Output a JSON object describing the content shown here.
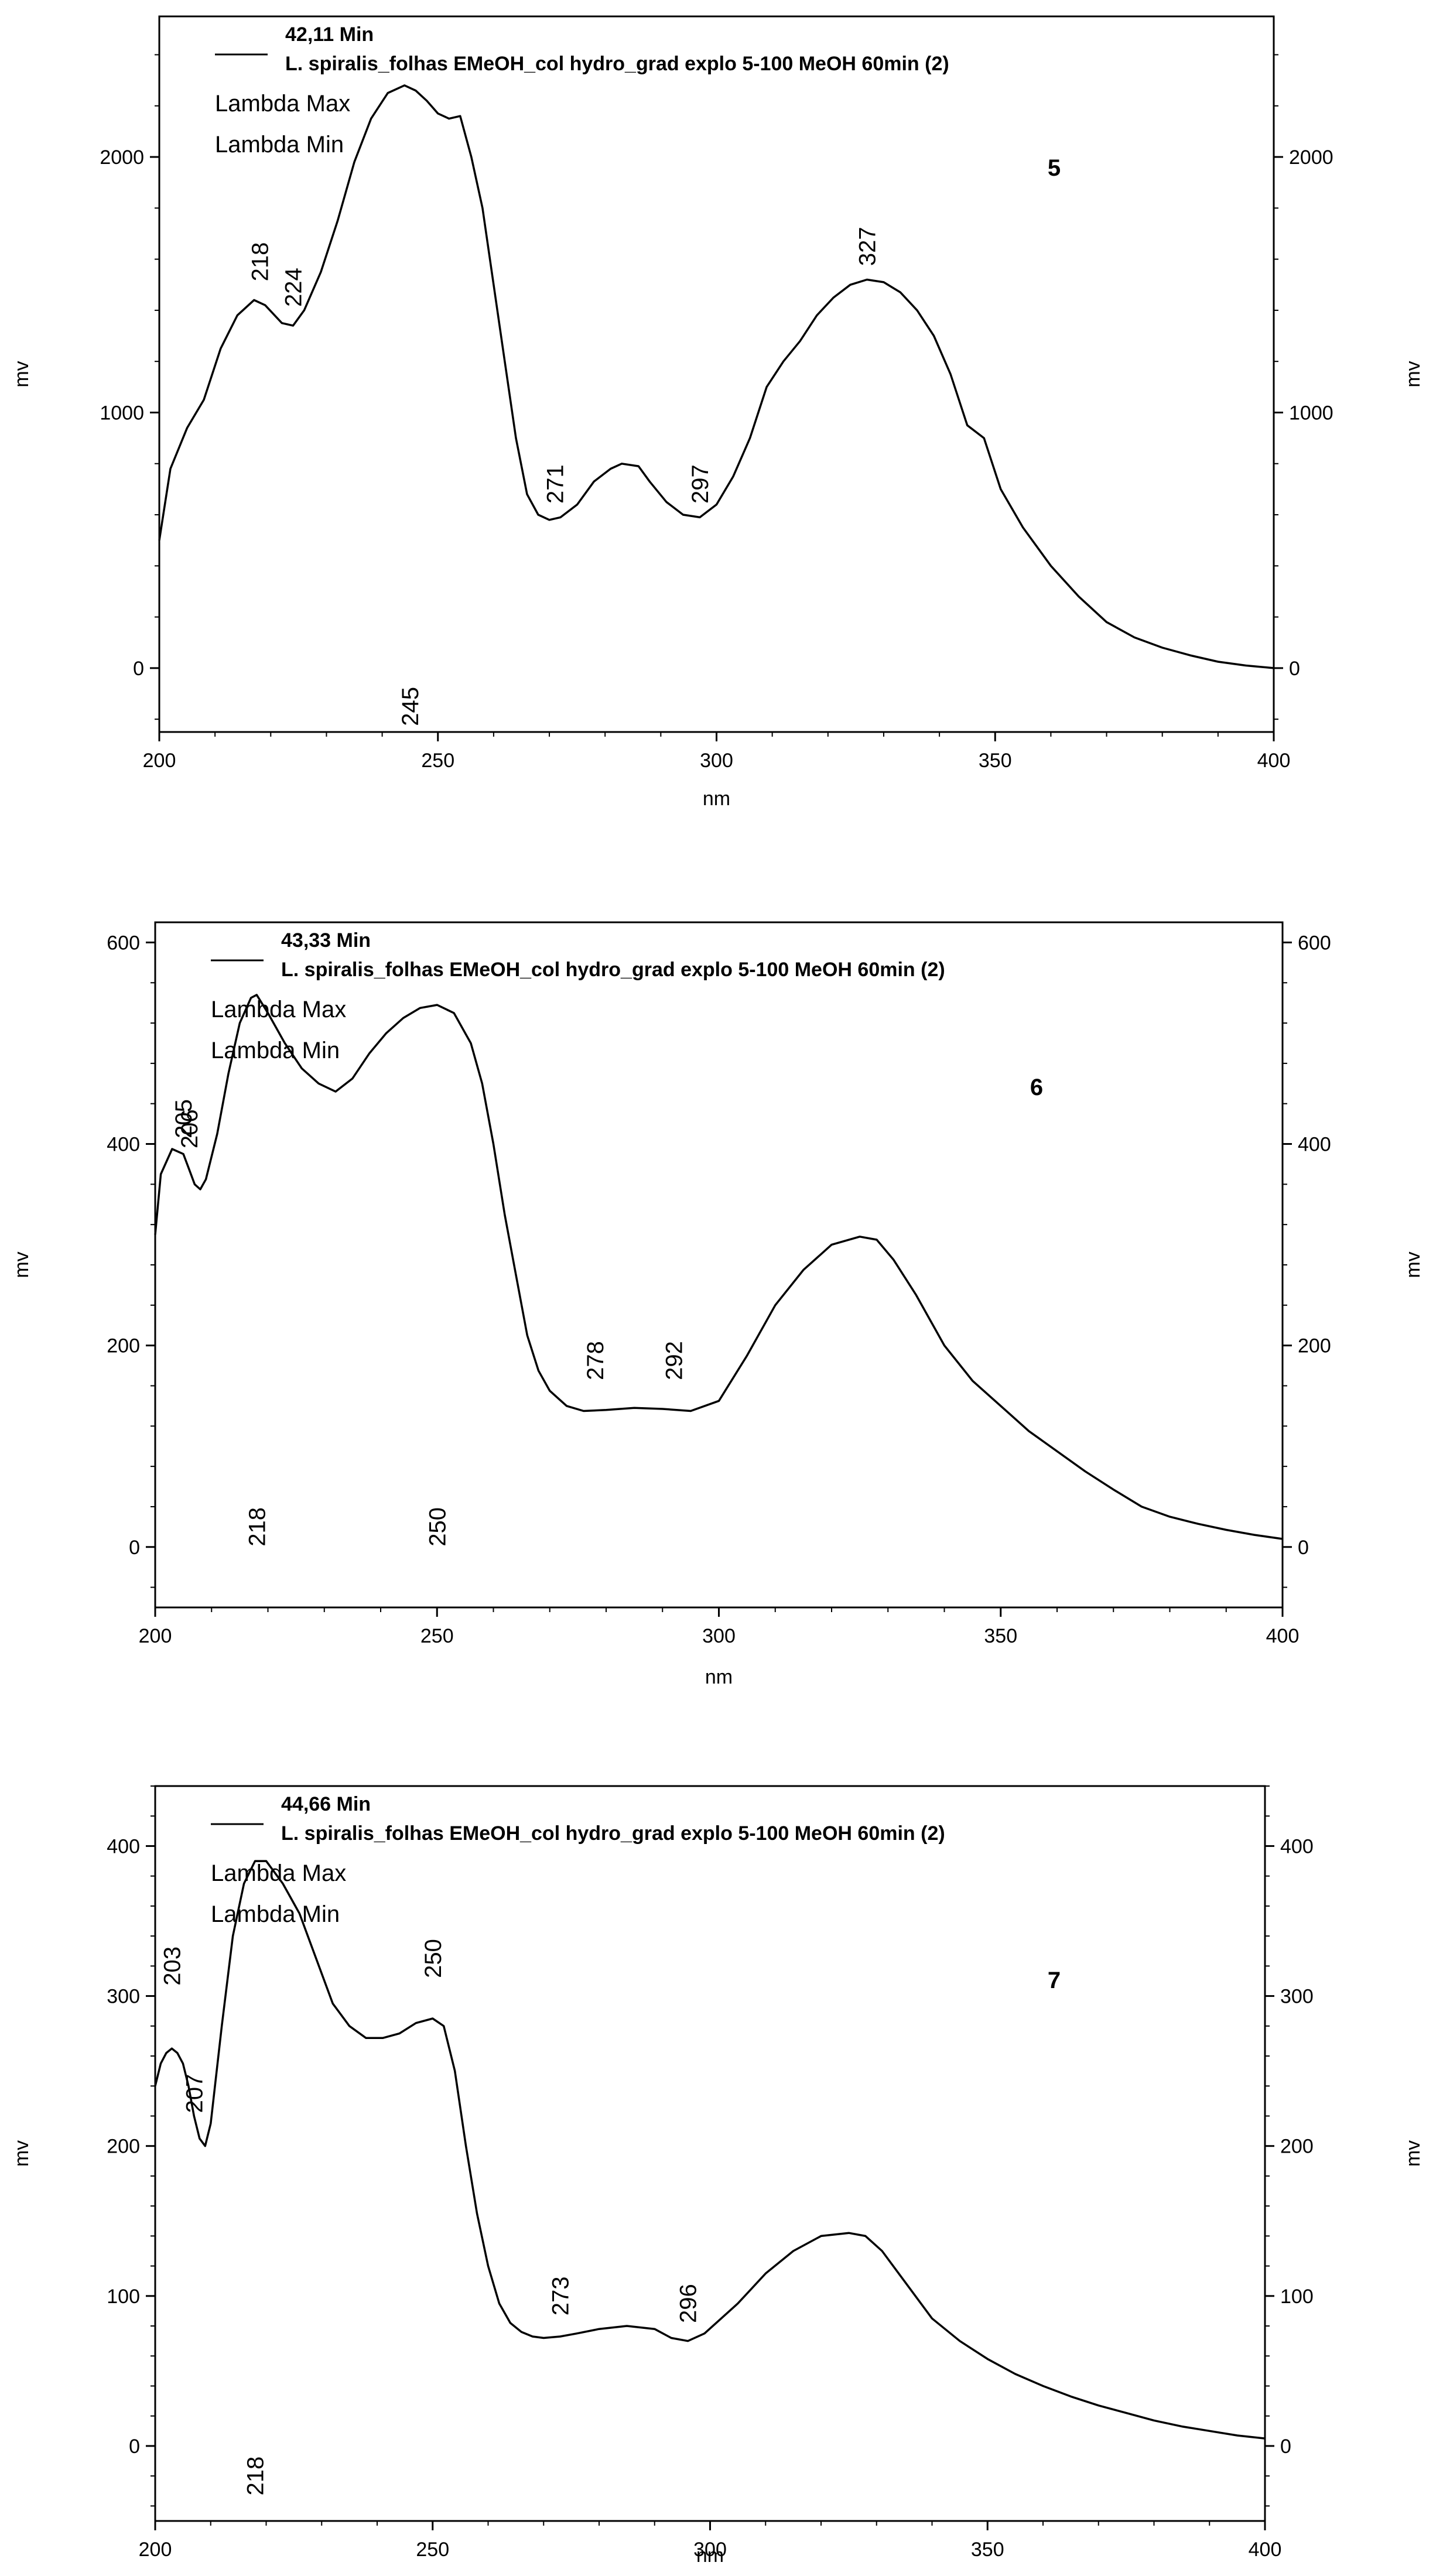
{
  "chart_data": [
    {
      "type": "line",
      "panel_number": "5",
      "legend": {
        "time": "42,11 Min",
        "sample": "L. spiralis_folhas EMeOH_col hydro_grad explo 5-100 MeOH 60min (2)",
        "lambda_max": "Lambda Max",
        "lambda_min": "Lambda Min"
      },
      "xlabel": "nm",
      "ylabel": "mv",
      "ylabel_right": "mv",
      "xlim": [
        200,
        400
      ],
      "ylim": [
        -250,
        2550
      ],
      "xticks": [
        200,
        250,
        300,
        350,
        400
      ],
      "yticks": [
        0,
        1000,
        2000
      ],
      "series": [
        {
          "x": [
            200,
            202,
            205,
            208,
            211,
            214,
            217,
            219,
            222,
            224,
            226,
            229,
            232,
            235,
            238,
            241,
            244,
            246,
            248,
            250,
            252,
            254,
            256,
            258,
            260,
            262,
            264,
            266,
            268,
            270,
            272,
            275,
            278,
            281,
            283,
            286,
            288,
            291,
            294,
            297,
            300,
            303,
            306,
            309,
            312,
            315,
            318,
            321,
            324,
            327,
            330,
            333,
            336,
            339,
            342,
            345,
            348,
            351,
            355,
            360,
            365,
            370,
            375,
            380,
            385,
            390,
            395,
            400
          ],
          "y": [
            500,
            780,
            940,
            1050,
            1250,
            1380,
            1440,
            1420,
            1350,
            1340,
            1400,
            1550,
            1750,
            1980,
            2150,
            2250,
            2280,
            2260,
            2220,
            2170,
            2150,
            2160,
            2000,
            1800,
            1500,
            1200,
            900,
            680,
            600,
            580,
            590,
            640,
            730,
            780,
            800,
            790,
            730,
            650,
            600,
            590,
            640,
            750,
            900,
            1100,
            1200,
            1280,
            1380,
            1450,
            1500,
            1520,
            1510,
            1470,
            1400,
            1300,
            1150,
            950,
            900,
            700,
            550,
            400,
            280,
            180,
            120,
            80,
            50,
            25,
            10,
            0
          ]
        }
      ],
      "annotations": [
        {
          "label": "218",
          "x": 218,
          "y": 1590
        },
        {
          "label": "224",
          "x": 224,
          "y": 1490
        },
        {
          "label": "271",
          "x": 271,
          "y": 720
        },
        {
          "label": "297",
          "x": 297,
          "y": 720
        },
        {
          "label": "327",
          "x": 327,
          "y": 1650
        },
        {
          "label": "245",
          "x": 245,
          "y": -150
        }
      ]
    },
    {
      "type": "line",
      "panel_number": "6",
      "legend": {
        "time": "43,33 Min",
        "sample": "L. spiralis_folhas EMeOH_col hydro_grad explo 5-100 MeOH 60min (2)",
        "lambda_max": "Lambda Max",
        "lambda_min": "Lambda Min"
      },
      "xlabel": "nm",
      "ylabel": "mv",
      "ylabel_right": "mv",
      "xlim": [
        200,
        400
      ],
      "ylim": [
        -60,
        620
      ],
      "xticks": [
        200,
        250,
        300,
        350,
        400
      ],
      "yticks": [
        0,
        200,
        400,
        600
      ],
      "series": [
        {
          "x": [
            200,
            201,
            203,
            205,
            206,
            207,
            208,
            209,
            211,
            213,
            215,
            217,
            218,
            220,
            223,
            226,
            229,
            232,
            235,
            238,
            241,
            244,
            247,
            250,
            253,
            256,
            258,
            260,
            262,
            264,
            266,
            268,
            270,
            273,
            276,
            280,
            285,
            290,
            295,
            300,
            305,
            310,
            315,
            320,
            325,
            328,
            331,
            335,
            340,
            345,
            350,
            355,
            360,
            365,
            370,
            375,
            380,
            385,
            390,
            395,
            400
          ],
          "y": [
            310,
            370,
            395,
            390,
            375,
            360,
            355,
            365,
            410,
            470,
            520,
            545,
            548,
            530,
            500,
            475,
            460,
            452,
            465,
            490,
            510,
            525,
            535,
            538,
            530,
            500,
            460,
            400,
            330,
            270,
            210,
            175,
            155,
            140,
            135,
            136,
            138,
            137,
            135,
            145,
            190,
            240,
            275,
            300,
            308,
            305,
            285,
            250,
            200,
            165,
            140,
            115,
            95,
            75,
            57,
            40,
            30,
            23,
            17,
            12,
            8
          ]
        }
      ],
      "annotations": [
        {
          "label": "205",
          "x": 205,
          "y": 425
        },
        {
          "label": "206",
          "x": 206,
          "y": 415
        },
        {
          "label": "218",
          "x": 218,
          "y": 20
        },
        {
          "label": "250",
          "x": 250,
          "y": 20
        },
        {
          "label": "278",
          "x": 278,
          "y": 185
        },
        {
          "label": "292",
          "x": 292,
          "y": 185
        }
      ]
    },
    {
      "type": "line",
      "panel_number": "7",
      "legend": {
        "time": "44,66 Min",
        "sample": "L. spiralis_folhas EMeOH_col hydro_grad explo 5-100 MeOH 60min (2)",
        "lambda_max": "Lambda Max",
        "lambda_min": "Lambda Min"
      },
      "xlabel": "nm",
      "ylabel": "mv",
      "ylabel_right": "mv",
      "xlim": [
        200,
        400
      ],
      "ylim": [
        -50,
        440
      ],
      "xticks": [
        200,
        250,
        300,
        350,
        400
      ],
      "yticks": [
        0,
        100,
        200,
        300,
        400
      ],
      "series": [
        {
          "x": [
            200,
            201,
            202,
            203,
            204,
            205,
            206,
            207,
            208,
            209,
            210,
            212,
            214,
            216,
            218,
            220,
            223,
            226,
            229,
            232,
            235,
            238,
            241,
            244,
            247,
            250,
            252,
            254,
            256,
            258,
            260,
            262,
            264,
            266,
            268,
            270,
            273,
            276,
            280,
            285,
            290,
            293,
            296,
            299,
            302,
            305,
            310,
            315,
            320,
            325,
            328,
            331,
            335,
            340,
            345,
            350,
            355,
            360,
            365,
            370,
            375,
            380,
            385,
            390,
            395,
            400
          ],
          "y": [
            240,
            255,
            262,
            265,
            262,
            255,
            240,
            220,
            205,
            200,
            215,
            280,
            340,
            375,
            390,
            390,
            375,
            355,
            325,
            295,
            280,
            272,
            272,
            275,
            282,
            285,
            280,
            250,
            200,
            155,
            120,
            95,
            82,
            76,
            73,
            72,
            73,
            75,
            78,
            80,
            78,
            72,
            70,
            75,
            85,
            95,
            115,
            130,
            140,
            142,
            140,
            130,
            110,
            85,
            70,
            58,
            48,
            40,
            33,
            27,
            22,
            17,
            13,
            10,
            7,
            5
          ]
        }
      ],
      "annotations": [
        {
          "label": "203",
          "x": 203,
          "y": 320
        },
        {
          "label": "207",
          "x": 207,
          "y": 235
        },
        {
          "label": "218",
          "x": 218,
          "y": -20
        },
        {
          "label": "250",
          "x": 250,
          "y": 325
        },
        {
          "label": "273",
          "x": 273,
          "y": 100
        },
        {
          "label": "296",
          "x": 296,
          "y": 95
        }
      ]
    }
  ]
}
